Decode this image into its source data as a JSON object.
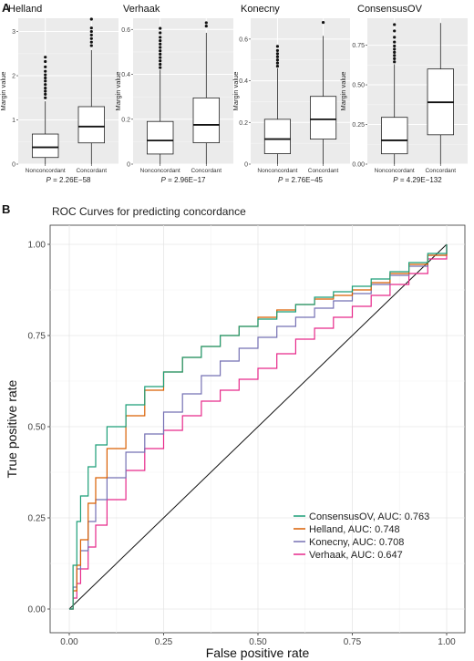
{
  "figure": {
    "panel_a_label": "A",
    "panel_b_label": "B"
  },
  "chart_data": [
    {
      "type": "box",
      "title": "Helland",
      "ylabel": "Margin value",
      "categories": [
        "Nonconcordant",
        "Concordant"
      ],
      "ylim": [
        0,
        3.3
      ],
      "yticks": [
        0,
        1,
        2,
        3
      ],
      "boxes": [
        {
          "min": 0.0,
          "q1": 0.15,
          "median": 0.38,
          "q3": 0.68,
          "max": 1.42,
          "outliers": [
            1.5,
            1.58,
            1.65,
            1.72,
            1.8,
            1.88,
            1.95,
            2.02,
            2.1,
            2.2,
            2.32,
            2.42
          ]
        },
        {
          "min": 0.0,
          "q1": 0.48,
          "median": 0.85,
          "q3": 1.3,
          "max": 2.58,
          "outliers": [
            2.68,
            2.76,
            2.84,
            2.92,
            3.0,
            3.08,
            3.28
          ]
        }
      ],
      "pvalue": "P = 2.26E−58"
    },
    {
      "type": "box",
      "title": "Verhaak",
      "ylabel": "Margin value",
      "categories": [
        "Nonconcordant",
        "Concordant"
      ],
      "ylim": [
        0,
        0.65
      ],
      "yticks": [
        0.0,
        0.2,
        0.4,
        0.6
      ],
      "boxes": [
        {
          "min": 0.0,
          "q1": 0.045,
          "median": 0.105,
          "q3": 0.19,
          "max": 0.42,
          "outliers": [
            0.43,
            0.445,
            0.46,
            0.475,
            0.49,
            0.505,
            0.52,
            0.535,
            0.55,
            0.565,
            0.585,
            0.605
          ]
        },
        {
          "min": 0.0,
          "q1": 0.095,
          "median": 0.175,
          "q3": 0.295,
          "max": 0.585,
          "outliers": [
            0.615,
            0.63
          ]
        }
      ],
      "pvalue": "P = 2.96E−17"
    },
    {
      "type": "box",
      "title": "Konecny",
      "ylabel": "Margin value",
      "categories": [
        "Nonconcordant",
        "Concordant"
      ],
      "ylim": [
        0,
        0.7
      ],
      "yticks": [
        0.0,
        0.2,
        0.4,
        0.6
      ],
      "boxes": [
        {
          "min": 0.0,
          "q1": 0.05,
          "median": 0.12,
          "q3": 0.215,
          "max": 0.46,
          "outliers": [
            0.47,
            0.485,
            0.5,
            0.515,
            0.53,
            0.545,
            0.565
          ]
        },
        {
          "min": 0.0,
          "q1": 0.12,
          "median": 0.215,
          "q3": 0.325,
          "max": 0.615,
          "outliers": [
            0.68
          ]
        }
      ],
      "pvalue": "P = 2.76E−45"
    },
    {
      "type": "box",
      "title": "ConsensusOV",
      "ylabel": "Margin value",
      "categories": [
        "Nonconcordant",
        "Concordant"
      ],
      "ylim": [
        0,
        0.92
      ],
      "yticks": [
        0.0,
        0.25,
        0.5,
        0.75
      ],
      "ytick_labels": [
        "0.00",
        "0.25",
        "0.50",
        "0.75"
      ],
      "boxes": [
        {
          "min": 0.0,
          "q1": 0.065,
          "median": 0.15,
          "q3": 0.295,
          "max": 0.63,
          "outliers": [
            0.645,
            0.665,
            0.685,
            0.705,
            0.725,
            0.745,
            0.77,
            0.8,
            0.84,
            0.88
          ]
        },
        {
          "min": 0.0,
          "q1": 0.185,
          "median": 0.39,
          "q3": 0.6,
          "max": 0.89,
          "outliers": []
        }
      ],
      "pvalue": "P = 4.29E−132"
    },
    {
      "type": "line",
      "title": "ROC Curves for predicting concordance",
      "xlabel": "False positive rate",
      "ylabel": "True positive rate",
      "xlim": [
        0,
        1
      ],
      "ylim": [
        0,
        1
      ],
      "ticks": [
        0,
        0.25,
        0.5,
        0.75,
        1
      ],
      "tick_labels": [
        "0.00",
        "0.25",
        "0.50",
        "0.75",
        "1.00"
      ],
      "grid": true,
      "legend_position": "bottom-right",
      "reference_line": [
        [
          0,
          0
        ],
        [
          1,
          1
        ]
      ],
      "series": [
        {
          "name": "ConsensusOV, AUC:  0.763",
          "color": "#1b9e77",
          "x": [
            0,
            0.01,
            0.02,
            0.03,
            0.05,
            0.07,
            0.1,
            0.15,
            0.2,
            0.25,
            0.3,
            0.35,
            0.4,
            0.45,
            0.5,
            0.55,
            0.6,
            0.65,
            0.7,
            0.75,
            0.8,
            0.85,
            0.9,
            0.95,
            1.0
          ],
          "y": [
            0,
            0.12,
            0.24,
            0.31,
            0.39,
            0.45,
            0.5,
            0.56,
            0.61,
            0.65,
            0.69,
            0.72,
            0.75,
            0.775,
            0.795,
            0.815,
            0.835,
            0.855,
            0.87,
            0.885,
            0.905,
            0.925,
            0.95,
            0.975,
            1.0
          ]
        },
        {
          "name": "Helland, AUC:  0.748",
          "color": "#d95f02",
          "x": [
            0,
            0.01,
            0.02,
            0.03,
            0.05,
            0.07,
            0.1,
            0.15,
            0.2,
            0.25,
            0.3,
            0.35,
            0.4,
            0.45,
            0.5,
            0.55,
            0.6,
            0.65,
            0.7,
            0.75,
            0.8,
            0.85,
            0.9,
            0.95,
            1.0
          ],
          "y": [
            0,
            0.05,
            0.12,
            0.19,
            0.29,
            0.36,
            0.44,
            0.53,
            0.6,
            0.65,
            0.69,
            0.72,
            0.75,
            0.775,
            0.8,
            0.82,
            0.835,
            0.85,
            0.86,
            0.875,
            0.895,
            0.92,
            0.945,
            0.97,
            1.0
          ]
        },
        {
          "name": "Konecny, AUC:  0.708",
          "color": "#7570b3",
          "x": [
            0,
            0.01,
            0.02,
            0.03,
            0.05,
            0.07,
            0.1,
            0.15,
            0.2,
            0.25,
            0.3,
            0.35,
            0.4,
            0.45,
            0.5,
            0.55,
            0.6,
            0.65,
            0.7,
            0.75,
            0.8,
            0.85,
            0.9,
            0.95,
            1.0
          ],
          "y": [
            0,
            0.06,
            0.11,
            0.16,
            0.24,
            0.3,
            0.36,
            0.43,
            0.48,
            0.54,
            0.59,
            0.64,
            0.68,
            0.715,
            0.745,
            0.775,
            0.8,
            0.825,
            0.845,
            0.865,
            0.89,
            0.915,
            0.94,
            0.97,
            1.0
          ]
        },
        {
          "name": "Verhaak, AUC:  0.647",
          "color": "#e7298a",
          "x": [
            0,
            0.01,
            0.02,
            0.03,
            0.05,
            0.07,
            0.1,
            0.15,
            0.2,
            0.25,
            0.3,
            0.35,
            0.4,
            0.45,
            0.5,
            0.55,
            0.6,
            0.65,
            0.7,
            0.75,
            0.8,
            0.85,
            0.9,
            0.95,
            1.0
          ],
          "y": [
            0,
            0.03,
            0.07,
            0.11,
            0.17,
            0.23,
            0.3,
            0.38,
            0.44,
            0.49,
            0.53,
            0.57,
            0.6,
            0.63,
            0.66,
            0.7,
            0.74,
            0.77,
            0.8,
            0.83,
            0.86,
            0.89,
            0.92,
            0.96,
            1.0
          ]
        }
      ]
    }
  ]
}
